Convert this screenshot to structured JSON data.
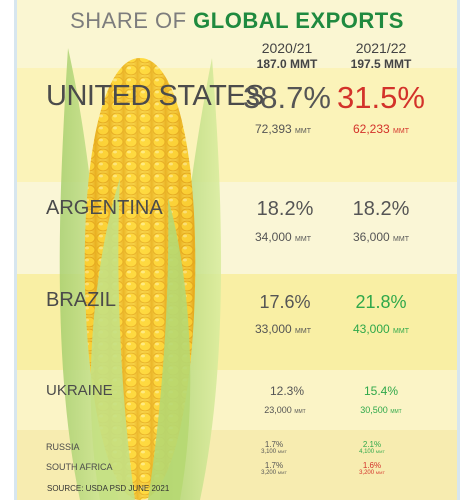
{
  "title": {
    "lead": "SHARE OF ",
    "emphasis": "GLOBAL EXPORTS"
  },
  "columns": [
    {
      "year": "2020/21",
      "total": "187.0 MMT"
    },
    {
      "year": "2021/22",
      "total": "197.5 MMT"
    }
  ],
  "rows": [
    {
      "country": "UNITED STATES",
      "share_2020": "38.7%",
      "volume_2020": "72,393",
      "share_2021": "31.5%",
      "volume_2021": "62,233",
      "unit": "MMT"
    },
    {
      "country": "ARGENTINA",
      "share_2020": "18.2%",
      "volume_2020": "34,000",
      "share_2021": "18.2%",
      "volume_2021": "36,000",
      "unit": "MMT"
    },
    {
      "country": "BRAZIL",
      "share_2020": "17.6%",
      "volume_2020": "33,000",
      "share_2021": "21.8%",
      "volume_2021": "43,000",
      "unit": "MMT"
    },
    {
      "country": "UKRAINE",
      "share_2020": "12.3%",
      "volume_2020": "23,000",
      "share_2021": "15.4%",
      "volume_2021": "30,500",
      "unit": "MMT"
    },
    {
      "country": "RUSSIA",
      "share_2020": "1.7%",
      "volume_2020": "3,100",
      "share_2021": "2.1%",
      "volume_2021": "4,100",
      "unit": "MMT"
    },
    {
      "country": "SOUTH AFRICA",
      "share_2020": "1.7%",
      "volume_2020": "3,200",
      "share_2021": "1.6%",
      "volume_2021": "3,200",
      "unit": "MMT"
    }
  ],
  "colors": {
    "up": "#2fa84a",
    "down": "#d3322a",
    "title_accent": "#1f8a3f"
  },
  "source": "SOURCE: USDA PSD JUNE 2021"
}
